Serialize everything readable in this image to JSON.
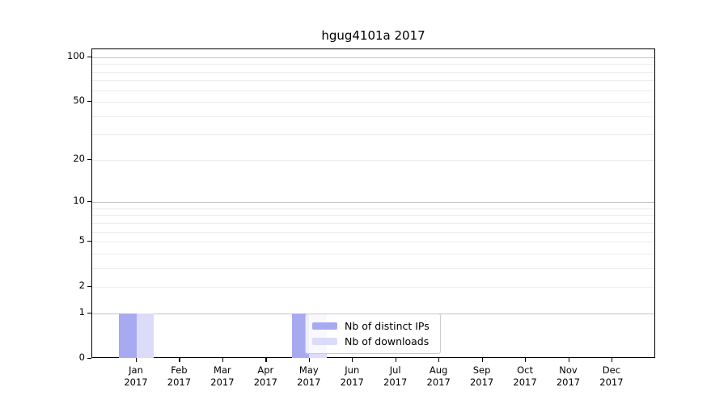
{
  "title": "hgug4101a 2017",
  "legend": {
    "items": [
      {
        "label": "Nb of distinct IPs",
        "color": "#a8aaf1"
      },
      {
        "label": "Nb of downloads",
        "color": "#dbdcf9"
      }
    ]
  },
  "y_axis": {
    "tick_labels": [
      "100",
      "50",
      "20",
      "10",
      "5",
      "2",
      "1",
      "0"
    ],
    "tick_values": [
      100,
      50,
      20,
      10,
      5,
      2,
      1,
      0
    ]
  },
  "x_axis": {
    "months": [
      "Jan",
      "Feb",
      "Mar",
      "Apr",
      "May",
      "Jun",
      "Jul",
      "Aug",
      "Sep",
      "Oct",
      "Nov",
      "Dec"
    ],
    "year": "2017"
  },
  "chart_data": {
    "type": "bar",
    "title": "hgug4101a 2017",
    "categories": [
      "Jan 2017",
      "Feb 2017",
      "Mar 2017",
      "Apr 2017",
      "May 2017",
      "Jun 2017",
      "Jul 2017",
      "Aug 2017",
      "Sep 2017",
      "Oct 2017",
      "Nov 2017",
      "Dec 2017"
    ],
    "series": [
      {
        "name": "Nb of distinct IPs",
        "color": "#a8aaf1",
        "values": [
          1,
          0,
          0,
          0,
          1,
          0,
          0,
          0,
          0,
          0,
          0,
          0
        ]
      },
      {
        "name": "Nb of downloads",
        "color": "#dbdcf9",
        "values": [
          1,
          0,
          0,
          0,
          1,
          0,
          0,
          0,
          0,
          0,
          0,
          0
        ]
      }
    ],
    "xlabel": "",
    "ylabel": "",
    "yscale": "log1p",
    "yticks": [
      0,
      1,
      2,
      5,
      10,
      20,
      50,
      100
    ],
    "ylim": [
      0,
      113
    ],
    "grid": "on",
    "grid_minor_lines": [
      2,
      3,
      4,
      5,
      6,
      7,
      8,
      9,
      20,
      30,
      40,
      50,
      60,
      70,
      80,
      90
    ],
    "grid_major_lines": [
      1,
      10,
      100
    ],
    "legend_position": "lower center"
  }
}
